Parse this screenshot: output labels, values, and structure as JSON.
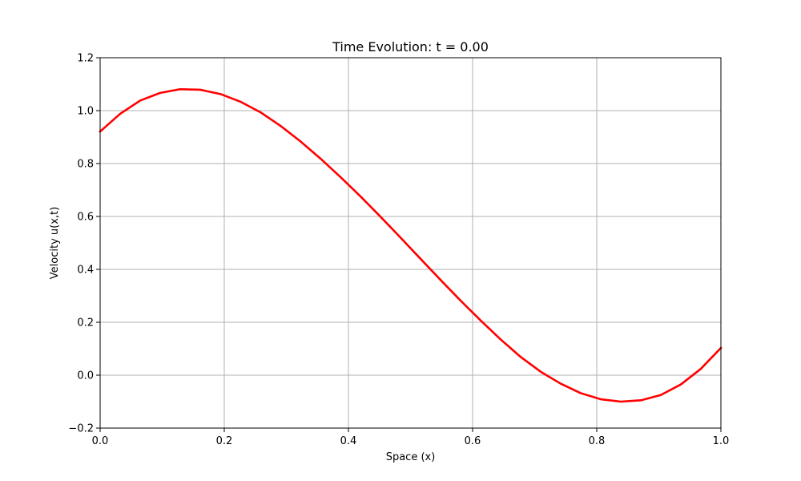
{
  "chart_data": {
    "type": "line",
    "title": "Time Evolution: t = 0.00",
    "xlabel": "Space (x)",
    "ylabel": "Velocity u(x,t)",
    "xlim": [
      0.0,
      1.0
    ],
    "ylim": [
      -0.2,
      1.2
    ],
    "grid": true,
    "x_ticks": [
      0.0,
      0.2,
      0.4,
      0.6,
      0.8,
      1.0
    ],
    "x_tick_labels": [
      "0.0",
      "0.2",
      "0.4",
      "0.6",
      "0.8",
      "1.0"
    ],
    "y_ticks": [
      -0.2,
      0.0,
      0.2,
      0.4,
      0.6,
      0.8,
      1.0,
      1.2
    ],
    "y_tick_labels": [
      "−0.2",
      "0.0",
      "0.2",
      "0.4",
      "0.6",
      "0.8",
      "1.0",
      "1.2"
    ],
    "series": [
      {
        "color": "#ff0000",
        "x": [
          0.0,
          0.0323,
          0.0645,
          0.0968,
          0.129,
          0.1613,
          0.1935,
          0.2258,
          0.2581,
          0.2903,
          0.3226,
          0.3548,
          0.3871,
          0.4194,
          0.4516,
          0.4839,
          0.5161,
          0.5484,
          0.5806,
          0.6129,
          0.6452,
          0.6774,
          0.7097,
          0.7419,
          0.7742,
          0.8065,
          0.8387,
          0.871,
          0.9032,
          0.9355,
          0.9677,
          1.0
        ],
        "y": [
          0.921,
          0.988,
          1.038,
          1.067,
          1.081,
          1.079,
          1.063,
          1.034,
          0.994,
          0.943,
          0.884,
          0.819,
          0.749,
          0.676,
          0.599,
          0.52,
          0.44,
          0.36,
          0.282,
          0.207,
          0.135,
          0.069,
          0.013,
          -0.032,
          -0.068,
          -0.091,
          -0.1,
          -0.095,
          -0.075,
          -0.035,
          0.024,
          0.103
        ]
      }
    ]
  }
}
